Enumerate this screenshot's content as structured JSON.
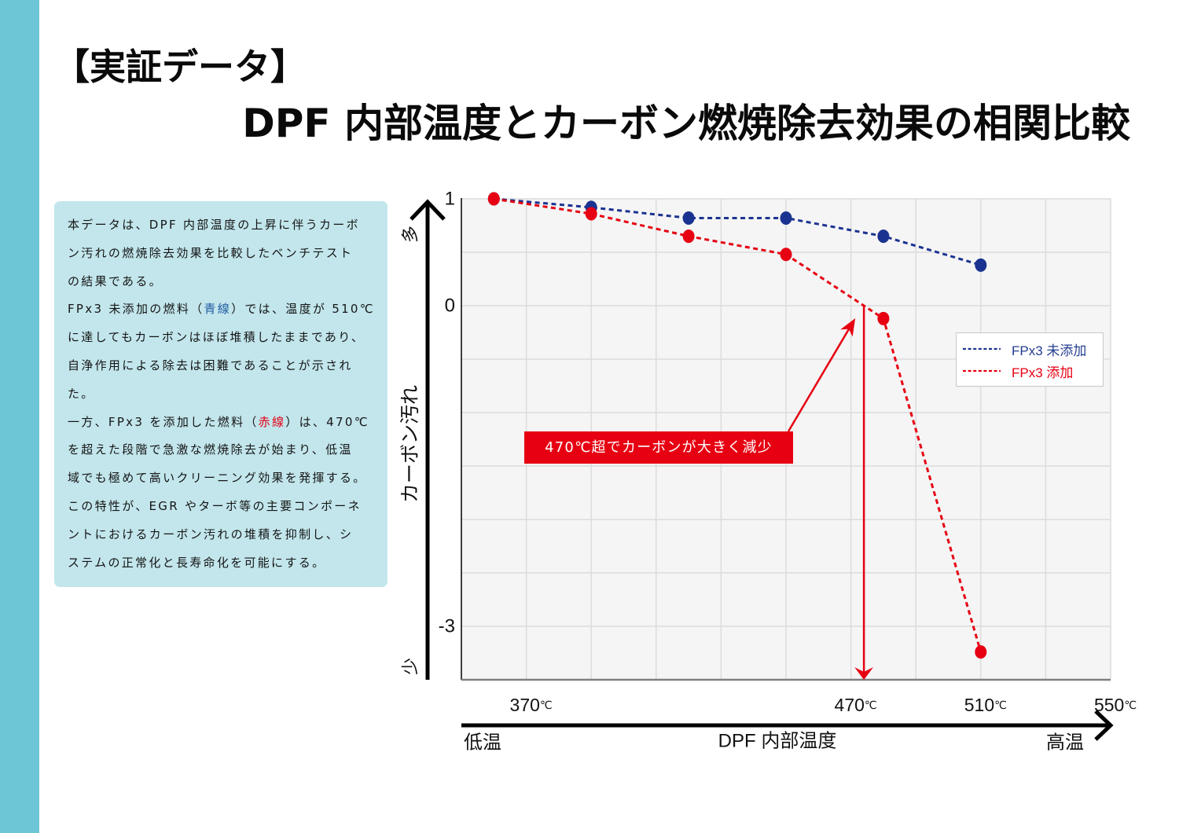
{
  "page": {
    "title_line1": "【実証データ】",
    "title_line2": "DPF 内部温度とカーボン燃焼除去効果の相関比較"
  },
  "description": {
    "lines": [
      [
        "本データは、DPF 内部温度の上昇に伴うカーボ"
      ],
      [
        "ン汚れの燃焼除去効果を比較したベンチテスト"
      ],
      [
        "の結果である。"
      ],
      [
        "FPx3 未添加の燃料（",
        "青線",
        "）では、温度が 510℃"
      ],
      [
        "に達してもカーボンはほぼ堆積したままであり、"
      ],
      [
        "自浄作用による除去は困難であることが示され"
      ],
      [
        "た。"
      ],
      [
        "一方、FPx3 を添加した燃料（",
        "赤線",
        "）は、470℃"
      ],
      [
        "を超えた段階で急激な燃焼除去が始まり、低温"
      ],
      [
        "域でも極めて高いクリーニング効果を発揮する。"
      ],
      [
        "この特性が、EGR やターボ等の主要コンポーネ"
      ],
      [
        "ントにおけるカーボン汚れの堆積を抑制し、シ"
      ],
      [
        "ステムの正常化と長寿命化を可能にする。"
      ]
    ]
  },
  "colors": {
    "sidebar": "#6DC6D5",
    "text_box": "#C2E6EC",
    "accent_red": "#E60012",
    "accent_blue": "#1B3390",
    "highlight_blue_text": "#1E5AA0",
    "plot_bg": "#F5F5F5",
    "grid": "#DCDCDC"
  },
  "chart_data": {
    "type": "line",
    "title": "",
    "xlabel": "DPF 内部温度",
    "ylabel": "カーボン汚れ",
    "x_low_label": "低温",
    "x_high_label": "高温",
    "y_high_label": "多",
    "y_low_label": "少",
    "xlim": [
      350,
      550
    ],
    "ylim": [
      -3.5,
      1
    ],
    "x_grid_step": 20,
    "y_grid_step": 0.5,
    "grid": true,
    "x_ticks": [
      {
        "value": 370,
        "num": "370",
        "unit": "℃"
      },
      {
        "value": 470,
        "num": "470",
        "unit": "℃"
      },
      {
        "value": 510,
        "num": "510",
        "unit": "℃"
      },
      {
        "value": 550,
        "num": "550",
        "unit": "℃"
      }
    ],
    "y_ticks": [
      {
        "value": 1,
        "label": "1"
      },
      {
        "value": 0,
        "label": "0"
      },
      {
        "value": -3,
        "label": "-3"
      }
    ],
    "x": [
      360,
      390,
      420,
      450,
      480,
      510
    ],
    "series": [
      {
        "name": "FPx3 未添加",
        "color": "#1B3390",
        "values": [
          1.0,
          0.92,
          0.82,
          0.82,
          0.65,
          0.38
        ]
      },
      {
        "name": "FPx3 添加",
        "color": "#E60012",
        "values": [
          1.0,
          0.86,
          0.65,
          0.48,
          -0.12,
          -3.24
        ]
      }
    ],
    "legend_position": "right",
    "annotation": {
      "text": "470℃超でカーボンが大きく減少",
      "target_x": 474,
      "target_y": 0,
      "color": "#E60012"
    }
  }
}
